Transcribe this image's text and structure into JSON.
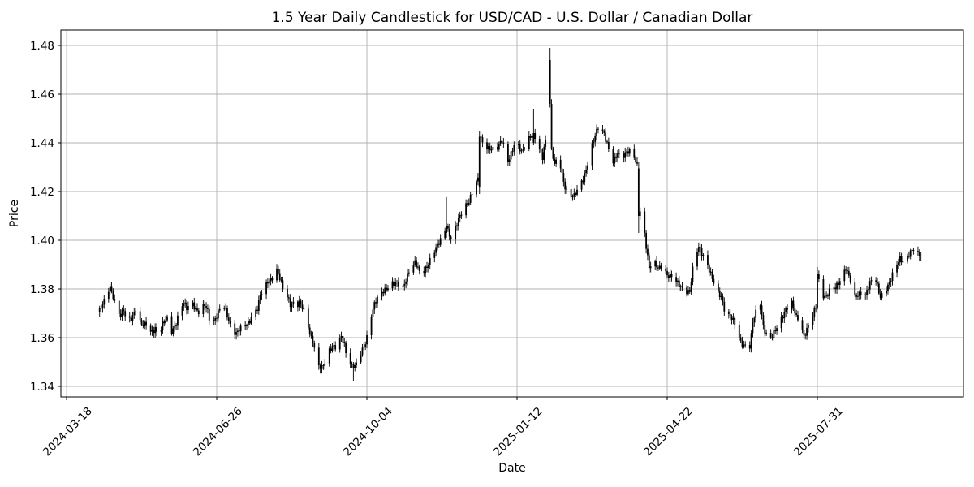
{
  "figure": {
    "background": "#ffffff"
  },
  "chart_data": {
    "type": "candlestick",
    "title": "1.5 Year Daily Candlestick for USD/CAD - U.S. Dollar / Canadian Dollar",
    "symbol": "USD/CAD",
    "instrument": "U.S. Dollar / Canadian Dollar",
    "period": "1.5 Year",
    "interval": "Daily",
    "xlabel": "Date",
    "ylabel": "Price",
    "grid": true,
    "legend_position": "none",
    "bar_color": "#000000",
    "grid_color": "#b0b0b0",
    "spine_color": "#000000",
    "background": "#ffffff",
    "y_ticks": [
      1.34,
      1.36,
      1.38,
      1.4,
      1.42,
      1.44,
      1.46,
      1.48
    ],
    "ylim": [
      1.33567,
      1.48633
    ],
    "x_tick_labels": [
      "2024-03-18",
      "2024-06-26",
      "2024-10-04",
      "2025-01-12",
      "2025-04-22",
      "2025-07-31"
    ],
    "x_tick_day_offsets": [
      0,
      100,
      200,
      300,
      400,
      500
    ],
    "xlim_day_offsets": [
      -3.8,
      597.3
    ],
    "epoch_date": "2024-03-18",
    "data_start_day_offset": 22,
    "data_end_day_offset": 569,
    "first_date": "2024-04-09",
    "last_date": "2025-10-08",
    "last_close": 1.3945,
    "price_range_low": 1.342,
    "price_range_high": 1.479,
    "series_anchors_day_close": [
      [
        22,
        1.371
      ],
      [
        25,
        1.3745
      ],
      [
        29,
        1.381
      ],
      [
        31,
        1.3775
      ],
      [
        33,
        1.372
      ],
      [
        36,
        1.369
      ],
      [
        38,
        1.371
      ],
      [
        40,
        1.366
      ],
      [
        43,
        1.368
      ],
      [
        46,
        1.372
      ],
      [
        48,
        1.367
      ],
      [
        51,
        1.3645
      ],
      [
        53,
        1.3655
      ],
      [
        56,
        1.3625
      ],
      [
        59,
        1.364
      ],
      [
        61,
        1.361
      ],
      [
        64,
        1.365
      ],
      [
        67,
        1.368
      ],
      [
        70,
        1.363
      ],
      [
        73,
        1.366
      ],
      [
        75,
        1.37
      ],
      [
        78,
        1.374
      ],
      [
        80,
        1.372
      ],
      [
        83,
        1.3755
      ],
      [
        86,
        1.372
      ],
      [
        88,
        1.37
      ],
      [
        92,
        1.373
      ],
      [
        94,
        1.371
      ],
      [
        96,
        1.366
      ],
      [
        99,
        1.368
      ],
      [
        101,
        1.37
      ],
      [
        104,
        1.374
      ],
      [
        107,
        1.369
      ],
      [
        110,
        1.364
      ],
      [
        113,
        1.362
      ],
      [
        115,
        1.363
      ],
      [
        118,
        1.364
      ],
      [
        121,
        1.366
      ],
      [
        124,
        1.37
      ],
      [
        127,
        1.372
      ],
      [
        129,
        1.377
      ],
      [
        132,
        1.38
      ],
      [
        134,
        1.383
      ],
      [
        137,
        1.385
      ],
      [
        140,
        1.388
      ],
      [
        142,
        1.384
      ],
      [
        144,
        1.38
      ],
      [
        147,
        1.377
      ],
      [
        149,
        1.374
      ],
      [
        151,
        1.3745
      ],
      [
        153,
        1.373
      ],
      [
        155,
        1.374
      ],
      [
        157,
        1.372
      ],
      [
        160,
        1.368
      ],
      [
        162,
        1.362
      ],
      [
        164,
        1.359
      ],
      [
        166,
        1.352
      ],
      [
        168,
        1.348
      ],
      [
        170,
        1.347
      ],
      [
        172,
        1.35
      ],
      [
        174,
        1.354
      ],
      [
        177,
        1.357
      ],
      [
        179,
        1.356
      ],
      [
        181,
        1.3575
      ],
      [
        183,
        1.36
      ],
      [
        185,
        1.357
      ],
      [
        187,
        1.352
      ],
      [
        190,
        1.349
      ],
      [
        191,
        1.3475
      ],
      [
        193,
        1.349
      ],
      [
        195,
        1.352
      ],
      [
        197,
        1.3545
      ],
      [
        199,
        1.358
      ],
      [
        201,
        1.363
      ],
      [
        203,
        1.37
      ],
      [
        205,
        1.374
      ],
      [
        208,
        1.3765
      ],
      [
        212,
        1.3795
      ],
      [
        216,
        1.383
      ],
      [
        220,
        1.382
      ],
      [
        224,
        1.38
      ],
      [
        228,
        1.388
      ],
      [
        232,
        1.391
      ],
      [
        236,
        1.385
      ],
      [
        240,
        1.3895
      ],
      [
        244,
        1.395
      ],
      [
        248,
        1.3985
      ],
      [
        251,
        1.402
      ],
      [
        253,
        1.406
      ],
      [
        256,
        1.401
      ],
      [
        260,
        1.4065
      ],
      [
        264,
        1.4125
      ],
      [
        268,
        1.4165
      ],
      [
        272,
        1.423
      ],
      [
        274,
        1.4245
      ],
      [
        275,
        1.4425
      ],
      [
        278,
        1.439
      ],
      [
        282,
        1.438
      ],
      [
        286,
        1.4365
      ],
      [
        290,
        1.441
      ],
      [
        294,
        1.433
      ],
      [
        299,
        1.44
      ],
      [
        303,
        1.436
      ],
      [
        307,
        1.442
      ],
      [
        311,
        1.444
      ],
      [
        314,
        1.438
      ],
      [
        317,
        1.434
      ],
      [
        319,
        1.442
      ],
      [
        322,
        1.456
      ],
      [
        323,
        1.437
      ],
      [
        325,
        1.431
      ],
      [
        328,
        1.433
      ],
      [
        331,
        1.424
      ],
      [
        334,
        1.419
      ],
      [
        338,
        1.418
      ],
      [
        341,
        1.421
      ],
      [
        344,
        1.425
      ],
      [
        347,
        1.432
      ],
      [
        350,
        1.439
      ],
      [
        354,
        1.446
      ],
      [
        358,
        1.444
      ],
      [
        361,
        1.438
      ],
      [
        364,
        1.432
      ],
      [
        367,
        1.435
      ],
      [
        370,
        1.434
      ],
      [
        373,
        1.437
      ],
      [
        377,
        1.436
      ],
      [
        380,
        1.43
      ],
      [
        381,
        1.41
      ],
      [
        383,
        1.413
      ],
      [
        386,
        1.398
      ],
      [
        388,
        1.389
      ],
      [
        391,
        1.391
      ],
      [
        394,
        1.388
      ],
      [
        397,
        1.39
      ],
      [
        400,
        1.386
      ],
      [
        403,
        1.385
      ],
      [
        407,
        1.382
      ],
      [
        411,
        1.38
      ],
      [
        415,
        1.379
      ],
      [
        418,
        1.392
      ],
      [
        421,
        1.397
      ],
      [
        424,
        1.394
      ],
      [
        427,
        1.39
      ],
      [
        430,
        1.384
      ],
      [
        433,
        1.378
      ],
      [
        436,
        1.377
      ],
      [
        439,
        1.37
      ],
      [
        442,
        1.369
      ],
      [
        446,
        1.364
      ],
      [
        449,
        1.358
      ],
      [
        452,
        1.357
      ],
      [
        455,
        1.3555
      ],
      [
        457,
        1.366
      ],
      [
        459,
        1.37
      ],
      [
        462,
        1.374
      ],
      [
        464,
        1.365
      ],
      [
        467,
        1.36
      ],
      [
        470,
        1.36
      ],
      [
        473,
        1.364
      ],
      [
        476,
        1.368
      ],
      [
        479,
        1.372
      ],
      [
        483,
        1.374
      ],
      [
        486,
        1.368
      ],
      [
        488,
        1.368
      ],
      [
        491,
        1.361
      ],
      [
        494,
        1.365
      ],
      [
        497,
        1.369
      ],
      [
        499,
        1.372
      ],
      [
        500,
        1.386
      ],
      [
        503,
        1.378
      ],
      [
        506,
        1.377
      ],
      [
        509,
        1.38
      ],
      [
        512,
        1.38
      ],
      [
        516,
        1.385
      ],
      [
        519,
        1.389
      ],
      [
        522,
        1.383
      ],
      [
        525,
        1.376
      ],
      [
        529,
        1.379
      ],
      [
        532,
        1.378
      ],
      [
        535,
        1.382
      ],
      [
        538,
        1.385
      ],
      [
        542,
        1.377
      ],
      [
        545,
        1.38
      ],
      [
        548,
        1.382
      ],
      [
        551,
        1.387
      ],
      [
        555,
        1.393
      ],
      [
        558,
        1.391
      ],
      [
        561,
        1.394
      ],
      [
        564,
        1.396
      ],
      [
        567,
        1.394
      ],
      [
        569,
        1.3945
      ]
    ],
    "key_candles": [
      {
        "date": "2024-09-25",
        "day": 191,
        "open": 1.349,
        "high": 1.35,
        "low": 1.342,
        "close": 1.3475
      },
      {
        "date": "2024-11-26",
        "day": 253,
        "open": 1.403,
        "high": 1.4177,
        "low": 1.401,
        "close": 1.406
      },
      {
        "date": "2024-12-18",
        "day": 275,
        "open": 1.422,
        "high": 1.445,
        "low": 1.419,
        "close": 1.4425
      },
      {
        "date": "2025-01-23",
        "day": 311,
        "open": 1.44,
        "high": 1.454,
        "low": 1.439,
        "close": 1.444
      },
      {
        "date": "2025-02-03",
        "day": 322,
        "open": 1.474,
        "high": 1.479,
        "low": 1.4545,
        "close": 1.456
      },
      {
        "date": "2025-04-03",
        "day": 381,
        "open": 1.4295,
        "high": 1.432,
        "low": 1.403,
        "close": 1.41
      },
      {
        "date": "2025-06-16",
        "day": 455,
        "open": 1.357,
        "high": 1.3585,
        "low": 1.354,
        "close": 1.3555
      },
      {
        "date": "2025-07-31",
        "day": 500,
        "open": 1.372,
        "high": 1.389,
        "low": 1.3715,
        "close": 1.386
      }
    ],
    "jitter": {
      "amp1": 0.001,
      "freq1": 2.31,
      "ph1": 1.3,
      "amp2": 0.0006,
      "freq2": 0.67,
      "wick_base": 0.0006,
      "wick_amp": 0.0013,
      "wick_freq_hi": 1.7,
      "wick_ph_hi": 0.4,
      "wick_freq_lo": 2.9,
      "wick_ph_lo": 1.8
    }
  }
}
